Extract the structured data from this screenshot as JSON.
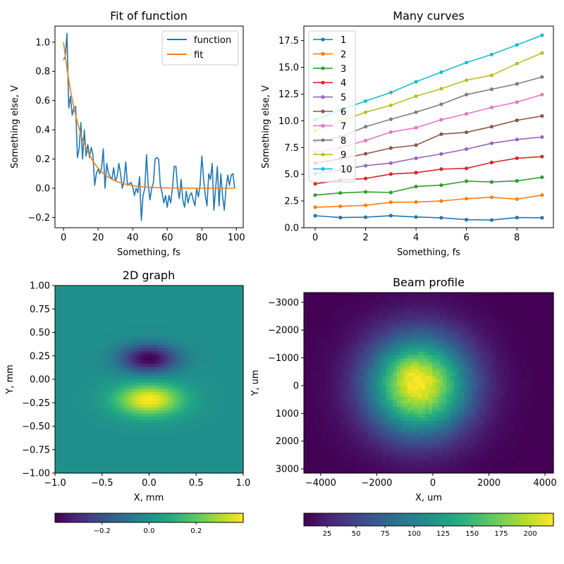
{
  "chart_data": [
    {
      "id": "fit",
      "type": "line",
      "title": "Fit of function",
      "xlabel": "Something, fs",
      "ylabel": "Something else, V",
      "xlim": [
        -4.95,
        103.95
      ],
      "ylim": [
        -0.27,
        1.11
      ],
      "xticks": [
        0,
        20,
        40,
        60,
        80,
        100
      ],
      "xtick_labels": [
        "0",
        "20",
        "40",
        "60",
        "80",
        "100"
      ],
      "yticks": [
        -0.2,
        0.0,
        0.2,
        0.4,
        0.6,
        0.8,
        1.0
      ],
      "ytick_labels": [
        "−0.2",
        "0.0",
        "0.2",
        "0.4",
        "0.6",
        "0.8",
        "1.0"
      ],
      "grid": false,
      "legend": "top-right",
      "series": [
        {
          "name": "function",
          "color": "#1f77b4",
          "x": [
            0,
            1,
            2,
            3,
            4,
            5,
            6,
            7,
            8,
            9,
            10,
            11,
            12,
            13,
            14,
            15,
            16,
            17,
            18,
            19,
            20,
            21,
            22,
            23,
            24,
            25,
            26,
            27,
            28,
            29,
            30,
            31,
            32,
            33,
            34,
            35,
            36,
            37,
            38,
            39,
            40,
            41,
            42,
            43,
            44,
            45,
            46,
            47,
            48,
            49,
            50,
            51,
            52,
            53,
            54,
            55,
            56,
            57,
            58,
            59,
            60,
            61,
            62,
            63,
            64,
            65,
            66,
            67,
            68,
            69,
            70,
            71,
            72,
            73,
            74,
            75,
            76,
            77,
            78,
            79,
            80,
            81,
            82,
            83,
            84,
            85,
            86,
            87,
            88,
            89,
            90,
            91,
            92,
            93,
            94,
            95,
            96,
            97,
            98,
            99
          ],
          "y": [
            0.88,
            0.9,
            1.06,
            0.55,
            0.63,
            0.5,
            0.55,
            0.56,
            0.21,
            0.27,
            0.45,
            0.2,
            0.4,
            0.22,
            0.3,
            0.21,
            0.28,
            0.23,
            0.02,
            0.1,
            0.13,
            0.1,
            0.14,
            0.27,
            0.0,
            0.17,
            0.1,
            0.08,
            0.06,
            0.14,
            0.05,
            0.08,
            0.17,
            0.1,
            0.0,
            0.05,
            0.18,
            0.02,
            0.03,
            0.04,
            0.01,
            -0.05,
            0.0,
            -0.03,
            0.08,
            -0.22,
            -0.05,
            0.0,
            0.23,
            0.02,
            -0.08,
            0.0,
            0.04,
            0.2,
            0.21,
            0.2,
            0.02,
            -0.03,
            -0.1,
            -0.05,
            -0.13,
            -0.05,
            -0.1,
            0.0,
            0.15,
            0.15,
            0.0,
            -0.07,
            0.06,
            -0.08,
            -0.13,
            -0.02,
            -0.1,
            -0.05,
            -0.03,
            -0.08,
            -0.12,
            0.0,
            -0.06,
            0.02,
            0.22,
            0.07,
            -0.05,
            -0.12,
            0.1,
            0.06,
            0.17,
            -0.15,
            0.0,
            0.15,
            -0.12,
            0.1,
            -0.05,
            -0.15,
            0.0,
            0.09,
            0.02,
            0.09,
            0.1,
            0.0
          ]
        },
        {
          "name": "fit",
          "color": "#ff7f0e",
          "x": [
            0,
            1,
            2,
            3,
            4,
            5,
            6,
            7,
            8,
            9,
            10,
            11,
            12,
            13,
            14,
            15,
            16,
            17,
            18,
            19,
            20,
            21,
            22,
            23,
            24,
            25,
            26,
            27,
            28,
            29,
            30,
            31,
            32,
            33,
            34,
            35,
            36,
            37,
            38,
            39,
            40,
            41,
            42,
            43,
            44,
            45,
            46,
            47,
            48,
            49,
            50,
            51,
            52,
            53,
            54,
            55,
            56,
            57,
            58,
            59,
            60,
            61,
            62,
            63,
            64,
            65,
            66,
            67,
            68,
            69,
            70,
            71,
            72,
            73,
            74,
            75,
            76,
            77,
            78,
            79,
            80,
            81,
            82,
            83,
            84,
            85,
            86,
            87,
            88,
            89,
            90,
            91,
            92,
            93,
            94,
            95,
            96,
            97,
            98,
            99
          ],
          "y": [
            1.0,
            0.906,
            0.821,
            0.743,
            0.673,
            0.61,
            0.552,
            0.5,
            0.453,
            0.41,
            0.371,
            0.336,
            0.305,
            0.276,
            0.25,
            0.226,
            0.205,
            0.186,
            0.168,
            0.152,
            0.138,
            0.125,
            0.113,
            0.102,
            0.093,
            0.084,
            0.076,
            0.069,
            0.062,
            0.056,
            0.051,
            0.046,
            0.042,
            0.038,
            0.034,
            0.031,
            0.028,
            0.025,
            0.023,
            0.021,
            0.019,
            0.017,
            0.015,
            0.014,
            0.012,
            0.011,
            0.01,
            0.009,
            0.008,
            0.007,
            0.007,
            0.006,
            0.006,
            0.005,
            0.005,
            0.004,
            0.004,
            0.003,
            0.003,
            0.003,
            0.002,
            0.002,
            0.002,
            0.002,
            0.002,
            0.002,
            0.001,
            0.001,
            0.001,
            0.001,
            0.001,
            0.001,
            0.001,
            0.001,
            0.001,
            0.001,
            0.001,
            0.0,
            0.0,
            0.0,
            0.0,
            0.0,
            0.0,
            0.0,
            0.0,
            0.0,
            0.0,
            0.0,
            0.0,
            0.0,
            0.0,
            0.0,
            0.0,
            0.0,
            0.0,
            0.0,
            0.0,
            0.0,
            0.0,
            0.0
          ]
        }
      ]
    },
    {
      "id": "curves",
      "type": "line",
      "title": "Many curves",
      "xlabel": "Something, fs",
      "ylabel": "Something else, V",
      "xlim": [
        -0.45,
        9.45
      ],
      "ylim": [
        0.0,
        18.86
      ],
      "xticks": [
        0,
        2,
        4,
        6,
        8
      ],
      "xtick_labels": [
        "0",
        "2",
        "4",
        "6",
        "8"
      ],
      "yticks": [
        0.0,
        2.5,
        5.0,
        7.5,
        10.0,
        12.5,
        15.0,
        17.5
      ],
      "ytick_labels": [
        "0.0",
        "2.5",
        "5.0",
        "7.5",
        "10.0",
        "12.5",
        "15.0",
        "17.5"
      ],
      "grid": false,
      "legend": "top-left",
      "x": [
        0,
        1,
        2,
        3,
        4,
        5,
        6,
        7,
        8,
        9
      ],
      "series": [
        {
          "name": "1",
          "color": "#1f77b4",
          "values": [
            1.12,
            0.95,
            0.98,
            1.13,
            1.0,
            0.93,
            0.75,
            0.72,
            0.95,
            0.93
          ]
        },
        {
          "name": "2",
          "color": "#ff7f0e",
          "values": [
            1.92,
            2.0,
            2.1,
            2.38,
            2.4,
            2.5,
            2.72,
            2.85,
            2.68,
            3.05
          ]
        },
        {
          "name": "3",
          "color": "#2ca02c",
          "values": [
            3.05,
            3.25,
            3.35,
            3.3,
            3.85,
            3.98,
            4.35,
            4.28,
            4.38,
            4.72
          ]
        },
        {
          "name": "4",
          "color": "#d62728",
          "values": [
            4.1,
            4.45,
            4.6,
            5.02,
            5.15,
            5.48,
            5.55,
            6.1,
            6.5,
            6.65
          ]
        },
        {
          "name": "5",
          "color": "#9467bd",
          "values": [
            5.05,
            5.4,
            5.8,
            6.05,
            6.5,
            6.9,
            7.35,
            7.9,
            8.25,
            8.48
          ]
        },
        {
          "name": "6",
          "color": "#8c564b",
          "values": [
            6.05,
            6.45,
            6.92,
            7.45,
            7.72,
            8.75,
            8.92,
            9.45,
            10.05,
            10.45
          ]
        },
        {
          "name": "7",
          "color": "#e377c2",
          "values": [
            7.05,
            7.5,
            8.15,
            8.95,
            9.35,
            10.1,
            10.65,
            11.25,
            11.75,
            12.45
          ]
        },
        {
          "name": "8",
          "color": "#7f7f7f",
          "values": [
            8.05,
            8.5,
            9.45,
            10.15,
            10.8,
            11.55,
            12.45,
            12.95,
            13.45,
            14.1
          ]
        },
        {
          "name": "9",
          "color": "#bcbd22",
          "values": [
            9.1,
            9.95,
            10.8,
            11.45,
            12.3,
            13.0,
            13.8,
            14.25,
            15.35,
            16.35
          ]
        },
        {
          "name": "10",
          "color": "#17becf",
          "values": [
            10.1,
            11.0,
            11.85,
            12.65,
            13.65,
            14.55,
            15.45,
            16.2,
            17.1,
            18.0
          ]
        }
      ]
    },
    {
      "id": "graph2d",
      "type": "heatmap",
      "title": "2D graph",
      "xlabel": "X, mm",
      "ylabel": "Y, mm",
      "xlim": [
        -1.0,
        1.0
      ],
      "ylim": [
        -1.0,
        1.0
      ],
      "xticks": [
        -1.0,
        -0.5,
        0.0,
        0.5,
        1.0
      ],
      "xtick_labels": [
        "−1.0",
        "−0.5",
        "0.0",
        "0.5",
        "1.0"
      ],
      "yticks": [
        1.0,
        0.75,
        0.5,
        0.25,
        0.0,
        -0.25,
        -0.5,
        -0.75,
        -1.0
      ],
      "ytick_labels": [
        "1.00",
        "0.75",
        "0.50",
        "0.25",
        "0.00",
        "−0.25",
        "−0.50",
        "−0.75",
        "−1.00"
      ],
      "colormap": "viridis",
      "field": "z = 0.4*exp(-((x/0.35)^2+((y+0.22)/0.17)^2)) - 0.4*exp(-((x/0.3)^2+((y-0.22)/0.15)^2))",
      "clim": [
        -0.4,
        0.4
      ],
      "colorbar": {
        "ticks": [
          -0.2,
          0.0,
          0.2
        ],
        "tick_labels": [
          "−0.2",
          "0.0",
          "0.2"
        ],
        "position": "bottom"
      }
    },
    {
      "id": "beam",
      "type": "heatmap",
      "title": "Beam profile",
      "xlabel": "X, um",
      "ylabel": "Y, um",
      "xlim": [
        -4600,
        4300
      ],
      "ylim": [
        3150,
        -3350
      ],
      "xticks": [
        -4000,
        -2000,
        0,
        2000,
        4000
      ],
      "xtick_labels": [
        "−4000",
        "−2000",
        "0",
        "2000",
        "4000"
      ],
      "yticks": [
        -3000,
        -2000,
        -1000,
        0,
        1000,
        2000,
        3000
      ],
      "ytick_labels": [
        "−3000",
        "−2000",
        "−1000",
        "0",
        "1000",
        "2000",
        "3000"
      ],
      "colormap": "viridis",
      "peak_center": [
        -500,
        0
      ],
      "peak_value": 220,
      "clim": [
        5,
        220
      ],
      "colorbar": {
        "ticks": [
          25,
          50,
          75,
          100,
          125,
          150,
          175,
          200
        ],
        "tick_labels": [
          "25",
          "50",
          "75",
          "100",
          "125",
          "150",
          "175",
          "200"
        ],
        "position": "bottom"
      }
    }
  ]
}
